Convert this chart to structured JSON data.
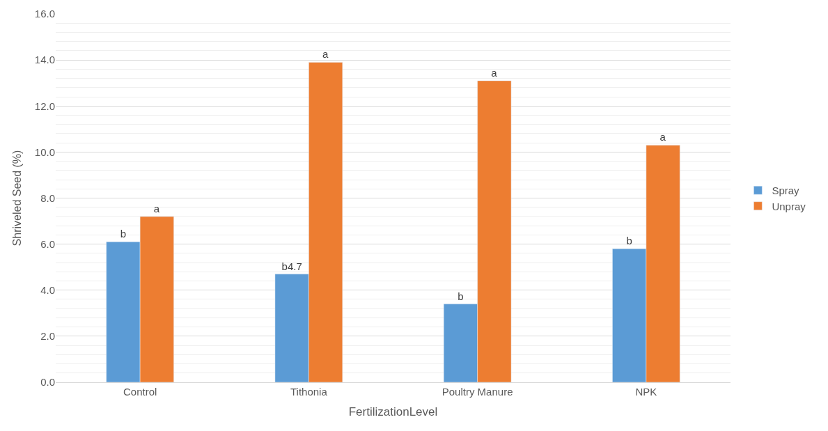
{
  "chart_data": {
    "type": "bar",
    "xlabel": "FertilizationLevel",
    "ylabel": "Shriveled Seed (%)",
    "categories": [
      "Control",
      "Tithonia",
      "Poultry Manure",
      "NPK"
    ],
    "series": [
      {
        "name": "Spray",
        "color": "#5b9bd5",
        "values": [
          6.1,
          4.7,
          3.4,
          5.8
        ],
        "value_labels": [
          "b",
          "b4.7",
          "b",
          "b"
        ]
      },
      {
        "name": "Unpray",
        "color": "#ed7d31",
        "values": [
          7.2,
          13.9,
          13.1,
          10.3
        ],
        "value_labels": [
          "a",
          "a",
          "a",
          "a"
        ]
      }
    ],
    "ylim": [
      0,
      16
    ],
    "yticks": [
      {
        "value": 0,
        "label": "0.0"
      },
      {
        "value": 2,
        "label": "2.0"
      },
      {
        "value": 4,
        "label": "4.0"
      },
      {
        "value": 6,
        "label": "6.0"
      },
      {
        "value": 8,
        "label": "8.0"
      },
      {
        "value": 10,
        "label": "10.0"
      },
      {
        "value": 12,
        "label": "12.0"
      },
      {
        "value": 14,
        "label": "14.0"
      },
      {
        "value": 16,
        "label": "16.0"
      }
    ],
    "grid": "y",
    "legend": "right"
  }
}
